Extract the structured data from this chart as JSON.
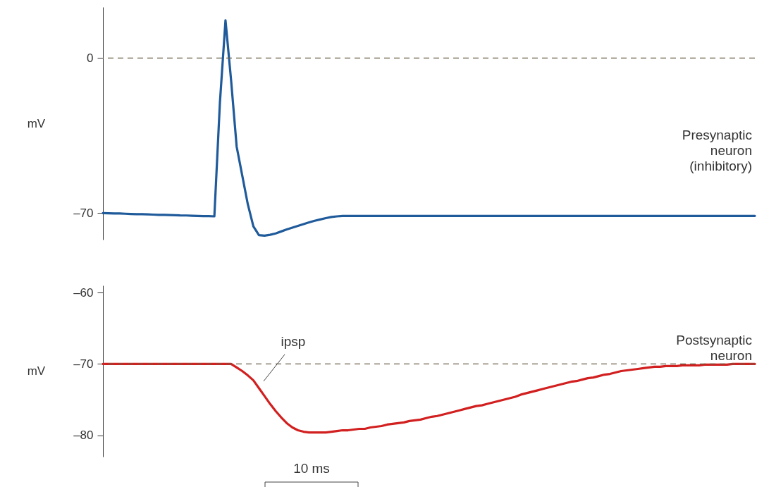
{
  "chart_data": [
    {
      "type": "line",
      "ylabel": "mV",
      "ylim": [
        -82,
        23
      ],
      "yticks": [
        {
          "value": 0,
          "label": "0"
        },
        {
          "value": -70,
          "label": "–70"
        }
      ],
      "tick_labels": "y",
      "categories": [
        null,
        null,
        null,
        null,
        null,
        null,
        null,
        null,
        null,
        null,
        null,
        null,
        null,
        null,
        null,
        null,
        null,
        null,
        null,
        null,
        null,
        null,
        null,
        null,
        null,
        null,
        null,
        null,
        null,
        null,
        null,
        null,
        null,
        null,
        null,
        null,
        null,
        null,
        null,
        null,
        null,
        null,
        null,
        null,
        null,
        null,
        null,
        null,
        null,
        null,
        null,
        null,
        null,
        null,
        null,
        null,
        null,
        null,
        null,
        null,
        null,
        null,
        null,
        null,
        null,
        null,
        null,
        null,
        null,
        null,
        null,
        null,
        null,
        null,
        null,
        null,
        null,
        null,
        null,
        null,
        null,
        null,
        null,
        null,
        null,
        null,
        null,
        null,
        null,
        null,
        null,
        null,
        null,
        null,
        null,
        null,
        null,
        null,
        null,
        null,
        null,
        null,
        null,
        null,
        null,
        null,
        null,
        null,
        null,
        null,
        null,
        null,
        null,
        null,
        null,
        null,
        null,
        null
      ],
      "series": [
        {
          "color": "#1f5a9a",
          "values": [
            -70.0,
            -70.1,
            -70.2,
            -70.2,
            -70.3,
            -70.4,
            -70.5,
            -70.5,
            -70.6,
            -70.7,
            -70.8,
            -70.8,
            -70.9,
            -71.0,
            -71.1,
            -71.1,
            -71.2,
            -71.3,
            -71.4,
            -71.4,
            -71.5,
            -20,
            17,
            -10,
            -40,
            -53,
            -66,
            -76,
            -80,
            -80.2,
            -79.8,
            -79.2,
            -78.3,
            -77.4,
            -76.6,
            -75.8,
            -75.0,
            -74.2,
            -73.5,
            -72.9,
            -72.3,
            -71.8,
            -71.5,
            -71.3,
            -71.3,
            -71.3,
            -71.3,
            -71.3,
            -71.3,
            -71.3,
            -71.3,
            -71.3,
            -71.3,
            -71.3,
            -71.3,
            -71.3,
            -71.3,
            -71.3,
            -71.3,
            -71.3,
            -71.3,
            -71.3,
            -71.3,
            -71.3,
            -71.3,
            -71.3,
            -71.3,
            -71.3,
            -71.3,
            -71.3,
            -71.3,
            -71.3,
            -71.3,
            -71.3,
            -71.3,
            -71.3,
            -71.3,
            -71.3,
            -71.3,
            -71.3,
            -71.3,
            -71.3,
            -71.3,
            -71.3,
            -71.3,
            -71.3,
            -71.3,
            -71.3,
            -71.3,
            -71.3,
            -71.3,
            -71.3,
            -71.3,
            -71.3,
            -71.3,
            -71.3,
            -71.3,
            -71.3,
            -71.3,
            -71.3,
            -71.3,
            -71.3,
            -71.3,
            -71.3,
            -71.3,
            -71.3,
            -71.3,
            -71.3,
            -71.3,
            -71.3,
            -71.3,
            -71.3,
            -71.3,
            -71.3,
            -71.3,
            -71.3,
            -71.3,
            -71.3
          ]
        }
      ],
      "ref_lines": [
        {
          "axis": "y",
          "value": 0,
          "color": "#6b6048",
          "line_style": "dashed"
        }
      ],
      "annotations": [
        "Presynaptic\nneuron\n(inhibitory)"
      ]
    },
    {
      "type": "line",
      "ylabel": "mV",
      "ylim": [
        -83,
        -59
      ],
      "yticks": [
        {
          "value": -60,
          "label": "–60"
        },
        {
          "value": -70,
          "label": "–70"
        },
        {
          "value": -80,
          "label": "–80"
        }
      ],
      "tick_labels": "y",
      "categories": [
        null,
        null,
        null,
        null,
        null,
        null,
        null,
        null,
        null,
        null,
        null,
        null,
        null,
        null,
        null,
        null,
        null,
        null,
        null,
        null,
        null,
        null,
        null,
        null,
        null,
        null,
        null,
        null,
        null,
        null,
        null,
        null,
        null,
        null,
        null,
        null,
        null,
        null,
        null,
        null,
        null,
        null,
        null,
        null,
        null,
        null,
        null,
        null,
        null,
        null,
        null,
        null,
        null,
        null,
        null,
        null,
        null,
        null,
        null,
        null,
        null,
        null,
        null,
        null,
        null,
        null,
        null,
        null,
        null,
        null,
        null,
        null,
        null,
        null,
        null,
        null,
        null,
        null,
        null,
        null,
        null,
        null,
        null,
        null,
        null,
        null,
        null,
        null,
        null,
        null,
        null,
        null,
        null,
        null,
        null,
        null,
        null,
        null,
        null,
        null,
        null,
        null,
        null,
        null,
        null,
        null,
        null,
        null,
        null,
        null,
        null,
        null,
        null,
        null,
        null,
        null,
        null,
        null
      ],
      "series": [
        {
          "color": "#d21f1f",
          "values": [
            -70,
            -70,
            -70,
            -70,
            -70,
            -70,
            -70,
            -70,
            -70,
            -70,
            -70,
            -70,
            -70,
            -70,
            -70,
            -70,
            -70,
            -70,
            -70,
            -70,
            -70,
            -70,
            -70,
            -70,
            -70.5,
            -71.0,
            -71.6,
            -72.3,
            -73.4,
            -74.5,
            -75.6,
            -76.6,
            -77.5,
            -78.3,
            -78.9,
            -79.3,
            -79.5,
            -79.6,
            -79.6,
            -79.6,
            -79.6,
            -79.5,
            -79.4,
            -79.3,
            -79.3,
            -79.2,
            -79.1,
            -79.1,
            -78.9,
            -78.8,
            -78.7,
            -78.5,
            -78.4,
            -78.3,
            -78.2,
            -78.0,
            -77.9,
            -77.8,
            -77.6,
            -77.4,
            -77.3,
            -77.1,
            -76.9,
            -76.7,
            -76.5,
            -76.3,
            -76.1,
            -75.9,
            -75.8,
            -75.6,
            -75.4,
            -75.2,
            -75.0,
            -74.8,
            -74.6,
            -74.3,
            -74.1,
            -73.9,
            -73.7,
            -73.5,
            -73.3,
            -73.1,
            -72.9,
            -72.7,
            -72.5,
            -72.4,
            -72.2,
            -72.0,
            -71.9,
            -71.7,
            -71.5,
            -71.4,
            -71.2,
            -71.0,
            -70.9,
            -70.8,
            -70.7,
            -70.6,
            -70.5,
            -70.4,
            -70.4,
            -70.3,
            -70.3,
            -70.3,
            -70.2,
            -70.2,
            -70.2,
            -70.2,
            -70.1,
            -70.1,
            -70.1,
            -70.1,
            -70.1,
            -70.0,
            -70.0,
            -70.0,
            -70.0,
            -70.0
          ]
        }
      ],
      "ref_lines": [
        {
          "axis": "y",
          "value": -70,
          "color": "#6b6048",
          "line_style": "dashed"
        }
      ],
      "annotations": [
        "Postsynaptic\nneuron",
        "ipsp",
        "10 ms"
      ]
    }
  ]
}
